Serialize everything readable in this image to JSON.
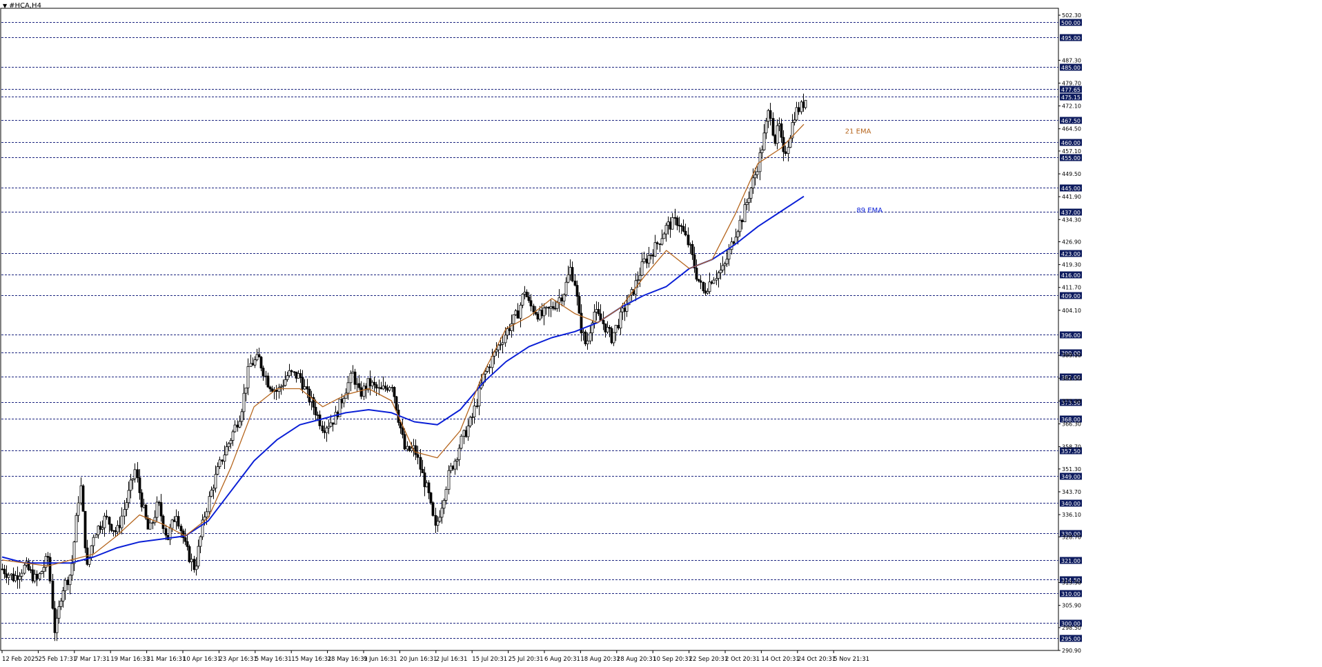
{
  "window": {
    "title": "#HCA,H4",
    "menu_icon": "dropdown-triangle-icon"
  },
  "colors": {
    "background": "#ffffff",
    "frame": "#000000",
    "grid_line": "#1a237e",
    "level_label_bg": "#0d1b5e",
    "level_label_text": "#ffffff",
    "candle": "#000000",
    "ema21": "#b5651d",
    "ema89": "#0a1fd6",
    "zone_fill": "#c8a6cd",
    "ema21_label": "#b5651d",
    "ema89_label": "#0a1fd6"
  },
  "chart_data": {
    "type": "candlestick",
    "symbol": "#HCA",
    "timeframe": "H4",
    "ylim": [
      290.9,
      505.0
    ],
    "x_tick_labels": [
      "12 Feb 2025",
      "25 Feb 17:31",
      "7 Mar 17:31",
      "19 Mar 16:31",
      "31 Mar 16:31",
      "10 Apr 16:31",
      "23 Apr 16:31",
      "5 May 16:31",
      "15 May 16:31",
      "28 May 16:31",
      "9 Jun 16:31",
      "20 Jun 16:31",
      "2 Jul 16:31",
      "15 Jul 20:31",
      "25 Jul 20:31",
      "6 Aug 20:31",
      "18 Aug 20:31",
      "28 Aug 20:31",
      "10 Sep 20:31",
      "22 Sep 20:31",
      "2 Oct 20:31",
      "14 Oct 20:31",
      "24 Oct 20:31",
      "5 Nov 21:31"
    ],
    "y_tick_labels": [
      "502.30",
      "487.30",
      "479.70",
      "472.10",
      "464.50",
      "457.10",
      "449.50",
      "441.90",
      "434.30",
      "426.90",
      "419.30",
      "411.70",
      "404.10",
      "389.10",
      "381.50",
      "373.90",
      "366.30",
      "358.70",
      "351.30",
      "343.70",
      "336.10",
      "328.70",
      "313.50",
      "305.90",
      "298.50",
      "290.90"
    ],
    "levels": [
      "500.00",
      "495.00",
      "485.00",
      "477.65",
      "475.15",
      "467.50",
      "460.00",
      "455.00",
      "445.00",
      "437.00",
      "423.00",
      "416.00",
      "409.00",
      "396.00",
      "390.00",
      "382.00",
      "373.50",
      "368.00",
      "357.50",
      "349.00",
      "340.00",
      "330.00",
      "321.00",
      "314.50",
      "310.00",
      "300.00",
      "295.00"
    ],
    "current_price": "475.15",
    "zone": {
      "low": 460.0,
      "high": 467.5,
      "from_index": 38.4
    },
    "price_path": [
      [
        0,
        318
      ],
      [
        0.5,
        315
      ],
      [
        1,
        319
      ],
      [
        1.5,
        314
      ],
      [
        2,
        322
      ],
      [
        2.3,
        296
      ],
      [
        2.6,
        311
      ],
      [
        3.0,
        317
      ],
      [
        3.4,
        347
      ],
      [
        3.7,
        318
      ],
      [
        4.0,
        330
      ],
      [
        4.5,
        335
      ],
      [
        5.0,
        330
      ],
      [
        5.4,
        340
      ],
      [
        5.8,
        351
      ],
      [
        6.0,
        343
      ],
      [
        6.4,
        330
      ],
      [
        6.8,
        340
      ],
      [
        7.2,
        328
      ],
      [
        7.6,
        337
      ],
      [
        8.0,
        325
      ],
      [
        8.4,
        318
      ],
      [
        8.8,
        335
      ],
      [
        9.2,
        346
      ],
      [
        9.6,
        355
      ],
      [
        10.0,
        362
      ],
      [
        10.4,
        370
      ],
      [
        10.8,
        386
      ],
      [
        11.2,
        388
      ],
      [
        11.6,
        380
      ],
      [
        12.0,
        377
      ],
      [
        12.5,
        383
      ],
      [
        13.0,
        382
      ],
      [
        13.3,
        376
      ],
      [
        13.6,
        372
      ],
      [
        14.0,
        365
      ],
      [
        14.5,
        368
      ],
      [
        15.0,
        378
      ],
      [
        15.3,
        383
      ],
      [
        15.6,
        376
      ],
      [
        16.0,
        380
      ],
      [
        16.5,
        377
      ],
      [
        17.0,
        380
      ],
      [
        17.3,
        368
      ],
      [
        17.6,
        357
      ],
      [
        18.0,
        358
      ],
      [
        18.3,
        350
      ],
      [
        18.6,
        343
      ],
      [
        18.9,
        331
      ],
      [
        19.2,
        340
      ],
      [
        19.5,
        350
      ],
      [
        19.8,
        355
      ],
      [
        20.0,
        360
      ],
      [
        20.5,
        368
      ],
      [
        21.0,
        382
      ],
      [
        21.5,
        390
      ],
      [
        22.0,
        397
      ],
      [
        22.5,
        403
      ],
      [
        22.8,
        411
      ],
      [
        23.0,
        406
      ],
      [
        23.5,
        402
      ],
      [
        24.0,
        405
      ],
      [
        24.5,
        410
      ],
      [
        24.8,
        418
      ],
      [
        25.0,
        413
      ],
      [
        25.2,
        400
      ],
      [
        25.5,
        392
      ],
      [
        25.8,
        404
      ],
      [
        26.2,
        400
      ],
      [
        26.6,
        395
      ],
      [
        27.0,
        402
      ],
      [
        27.5,
        410
      ],
      [
        28.0,
        420
      ],
      [
        28.5,
        425
      ],
      [
        29.0,
        432
      ],
      [
        29.5,
        434
      ],
      [
        30.0,
        425
      ],
      [
        30.3,
        416
      ],
      [
        30.6,
        410
      ],
      [
        31.0,
        415
      ],
      [
        31.5,
        418
      ],
      [
        32.0,
        430
      ],
      [
        32.3,
        435
      ],
      [
        32.6,
        443
      ],
      [
        32.9,
        450
      ],
      [
        33.2,
        460
      ],
      [
        33.5,
        472
      ],
      [
        33.7,
        460
      ],
      [
        33.9,
        466
      ],
      [
        34.1,
        455
      ],
      [
        34.3,
        460
      ],
      [
        34.6,
        470
      ],
      [
        34.9,
        472
      ],
      [
        35.1,
        475.15
      ]
    ],
    "ema21": [
      [
        0,
        321
      ],
      [
        1,
        320
      ],
      [
        2,
        319
      ],
      [
        3,
        321
      ],
      [
        4,
        323
      ],
      [
        5,
        329
      ],
      [
        6,
        336
      ],
      [
        7,
        333
      ],
      [
        8,
        329
      ],
      [
        9,
        335
      ],
      [
        10,
        352
      ],
      [
        11,
        372
      ],
      [
        12,
        378
      ],
      [
        13,
        378
      ],
      [
        14,
        372
      ],
      [
        15,
        376
      ],
      [
        16,
        378
      ],
      [
        17,
        374
      ],
      [
        18,
        357
      ],
      [
        19,
        355
      ],
      [
        20,
        364
      ],
      [
        21,
        383
      ],
      [
        22,
        398
      ],
      [
        23,
        402
      ],
      [
        24,
        408
      ],
      [
        25,
        403
      ],
      [
        26,
        400
      ],
      [
        27,
        405
      ],
      [
        28,
        415
      ],
      [
        29,
        424
      ],
      [
        30,
        418
      ],
      [
        31,
        421
      ],
      [
        32,
        436
      ],
      [
        33,
        453
      ],
      [
        34,
        458
      ],
      [
        35,
        466
      ]
    ],
    "ema89": [
      [
        0,
        322
      ],
      [
        1,
        320
      ],
      [
        2,
        320
      ],
      [
        3,
        320
      ],
      [
        4,
        322
      ],
      [
        5,
        325
      ],
      [
        6,
        327
      ],
      [
        7,
        328
      ],
      [
        8,
        329
      ],
      [
        9,
        334
      ],
      [
        10,
        344
      ],
      [
        11,
        354
      ],
      [
        12,
        361
      ],
      [
        13,
        366
      ],
      [
        14,
        368
      ],
      [
        15,
        370
      ],
      [
        16,
        371
      ],
      [
        17,
        370
      ],
      [
        18,
        367
      ],
      [
        19,
        366
      ],
      [
        20,
        371
      ],
      [
        21,
        380
      ],
      [
        22,
        387
      ],
      [
        23,
        392
      ],
      [
        24,
        395
      ],
      [
        25,
        397
      ],
      [
        26,
        400
      ],
      [
        27,
        405
      ],
      [
        28,
        409
      ],
      [
        29,
        412
      ],
      [
        30,
        418
      ],
      [
        31,
        421
      ],
      [
        32,
        426
      ],
      [
        33,
        432
      ],
      [
        34,
        437
      ],
      [
        35,
        442
      ]
    ],
    "annotations": [
      {
        "text": "21 EMA",
        "color_key": "ema21_label",
        "x_index": 36.8,
        "y": 462.9
      },
      {
        "text": "89 EMA",
        "color_key": "ema89_label",
        "x_index": 37.3,
        "y": 436.6
      }
    ]
  }
}
